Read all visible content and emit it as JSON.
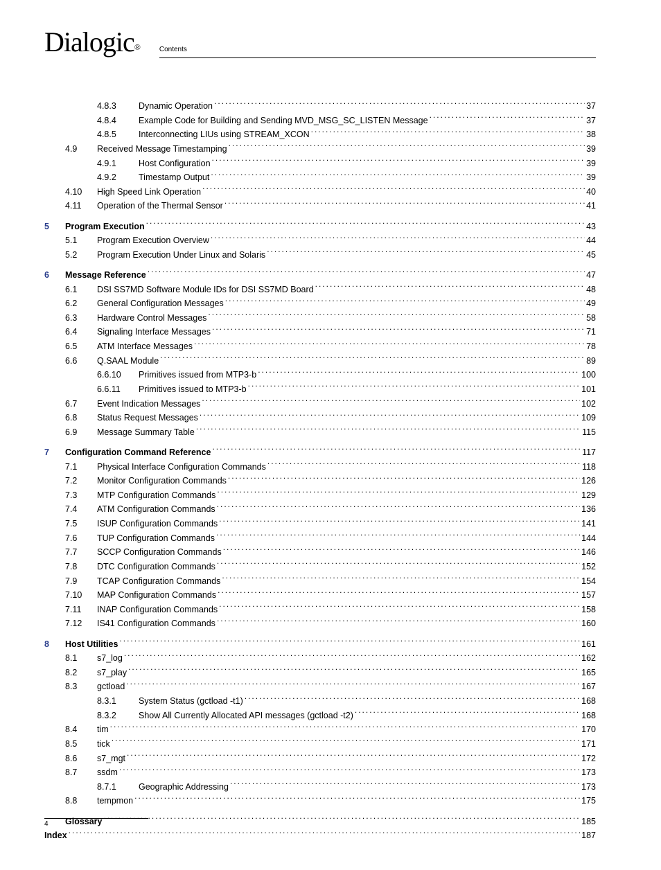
{
  "logo": "Dialogic",
  "header_label": "Contents",
  "footer_page": "4",
  "rows": [
    {
      "type": "sub",
      "num": "4.8.3",
      "title": "Dynamic Operation",
      "page": "37"
    },
    {
      "type": "sub",
      "num": "4.8.4",
      "title": "Example Code for Building and Sending MVD_MSG_SC_LISTEN Message",
      "page": "37"
    },
    {
      "type": "sub",
      "num": "4.8.5",
      "title": "Interconnecting LIUs using STREAM_XCON",
      "page": "38"
    },
    {
      "type": "sec",
      "num": "4.9",
      "title": "Received Message Timestamping",
      "page": "39"
    },
    {
      "type": "sub",
      "num": "4.9.1",
      "title": "Host Configuration",
      "page": "39"
    },
    {
      "type": "sub",
      "num": "4.9.2",
      "title": "Timestamp Output",
      "page": "39"
    },
    {
      "type": "sec",
      "num": "4.10",
      "title": "High Speed Link Operation",
      "page": "40"
    },
    {
      "type": "sec",
      "num": "4.11",
      "title": "Operation of the Thermal Sensor",
      "page": "41"
    },
    {
      "type": "ch",
      "chnum": "5",
      "title": "Program Execution",
      "page": "43",
      "gap": true
    },
    {
      "type": "sec",
      "num": "5.1",
      "title": "Program Execution Overview",
      "page": "44"
    },
    {
      "type": "sec",
      "num": "5.2",
      "title": "Program Execution Under Linux and Solaris",
      "page": "45"
    },
    {
      "type": "ch",
      "chnum": "6",
      "title": "Message Reference",
      "page": "47",
      "gap": true
    },
    {
      "type": "sec",
      "num": "6.1",
      "title": "DSI SS7MD Software Module IDs for DSI SS7MD Board",
      "page": "48"
    },
    {
      "type": "sec",
      "num": "6.2",
      "title": "General Configuration Messages",
      "page": "49"
    },
    {
      "type": "sec",
      "num": "6.3",
      "title": "Hardware Control Messages",
      "page": "58"
    },
    {
      "type": "sec",
      "num": "6.4",
      "title": "Signaling Interface Messages",
      "page": "71"
    },
    {
      "type": "sec",
      "num": "6.5",
      "title": "ATM Interface Messages",
      "page": "78"
    },
    {
      "type": "sec",
      "num": "6.6",
      "title": "Q.SAAL Module",
      "page": "89"
    },
    {
      "type": "sub",
      "num": "6.6.10",
      "title": "Primitives issued from MTP3-b",
      "page": "100"
    },
    {
      "type": "sub",
      "num": "6.6.11",
      "title": "Primitives issued to MTP3-b",
      "page": "101"
    },
    {
      "type": "sec",
      "num": "6.7",
      "title": "Event Indication Messages",
      "page": "102"
    },
    {
      "type": "sec",
      "num": "6.8",
      "title": "Status Request Messages",
      "page": "109"
    },
    {
      "type": "sec",
      "num": "6.9",
      "title": "Message Summary Table",
      "page": "115"
    },
    {
      "type": "ch",
      "chnum": "7",
      "title": "Configuration Command Reference",
      "page": "117",
      "gap": true
    },
    {
      "type": "sec",
      "num": "7.1",
      "title": "Physical Interface Configuration Commands",
      "page": "118"
    },
    {
      "type": "sec",
      "num": "7.2",
      "title": "Monitor Configuration Commands",
      "page": "126"
    },
    {
      "type": "sec",
      "num": "7.3",
      "title": "MTP Configuration Commands",
      "page": "129"
    },
    {
      "type": "sec",
      "num": "7.4",
      "title": "ATM Configuration Commands",
      "page": "136"
    },
    {
      "type": "sec",
      "num": "7.5",
      "title": "ISUP Configuration Commands",
      "page": "141"
    },
    {
      "type": "sec",
      "num": "7.6",
      "title": "TUP Configuration Commands",
      "page": "144"
    },
    {
      "type": "sec",
      "num": "7.7",
      "title": "SCCP Configuration Commands",
      "page": "146"
    },
    {
      "type": "sec",
      "num": "7.8",
      "title": "DTC Configuration Commands",
      "page": "152"
    },
    {
      "type": "sec",
      "num": "7.9",
      "title": "TCAP Configuration Commands",
      "page": "154"
    },
    {
      "type": "sec",
      "num": "7.10",
      "title": "MAP Configuration Commands",
      "page": "157"
    },
    {
      "type": "sec",
      "num": "7.11",
      "title": "INAP Configuration Commands",
      "page": "158"
    },
    {
      "type": "sec",
      "num": "7.12",
      "title": "IS41 Configuration Commands",
      "page": "160"
    },
    {
      "type": "ch",
      "chnum": "8",
      "title": "Host Utilities",
      "page": "161",
      "gap": true
    },
    {
      "type": "sec",
      "num": "8.1",
      "title": "s7_log",
      "page": "162"
    },
    {
      "type": "sec",
      "num": "8.2",
      "title": "s7_play",
      "page": "165"
    },
    {
      "type": "sec",
      "num": "8.3",
      "title": "gctload",
      "page": "167"
    },
    {
      "type": "sub",
      "num": "8.3.1",
      "title": "System Status (gctload -t1)",
      "page": "168"
    },
    {
      "type": "sub",
      "num": "8.3.2",
      "title": "Show All Currently Allocated API messages (gctload -t2)",
      "page": "168"
    },
    {
      "type": "sec",
      "num": "8.4",
      "title": "tim",
      "page": "170"
    },
    {
      "type": "sec",
      "num": "8.5",
      "title": "tick",
      "page": "171"
    },
    {
      "type": "sec",
      "num": "8.6",
      "title": "s7_mgt",
      "page": "172"
    },
    {
      "type": "sec",
      "num": "8.7",
      "title": "ssdm",
      "page": "173"
    },
    {
      "type": "sub",
      "num": "8.7.1",
      "title": "Geographic Addressing ",
      "page": "173"
    },
    {
      "type": "sec",
      "num": "8.8",
      "title": "tempmon",
      "page": "175"
    },
    {
      "type": "ch",
      "chnum": "",
      "title": "Glossary",
      "page": "185",
      "gap": true,
      "indent": "30"
    },
    {
      "type": "ch",
      "chnum": "",
      "title": "Index",
      "page": "187",
      "gap": false,
      "indent": "0",
      "titlepad": "0"
    }
  ]
}
